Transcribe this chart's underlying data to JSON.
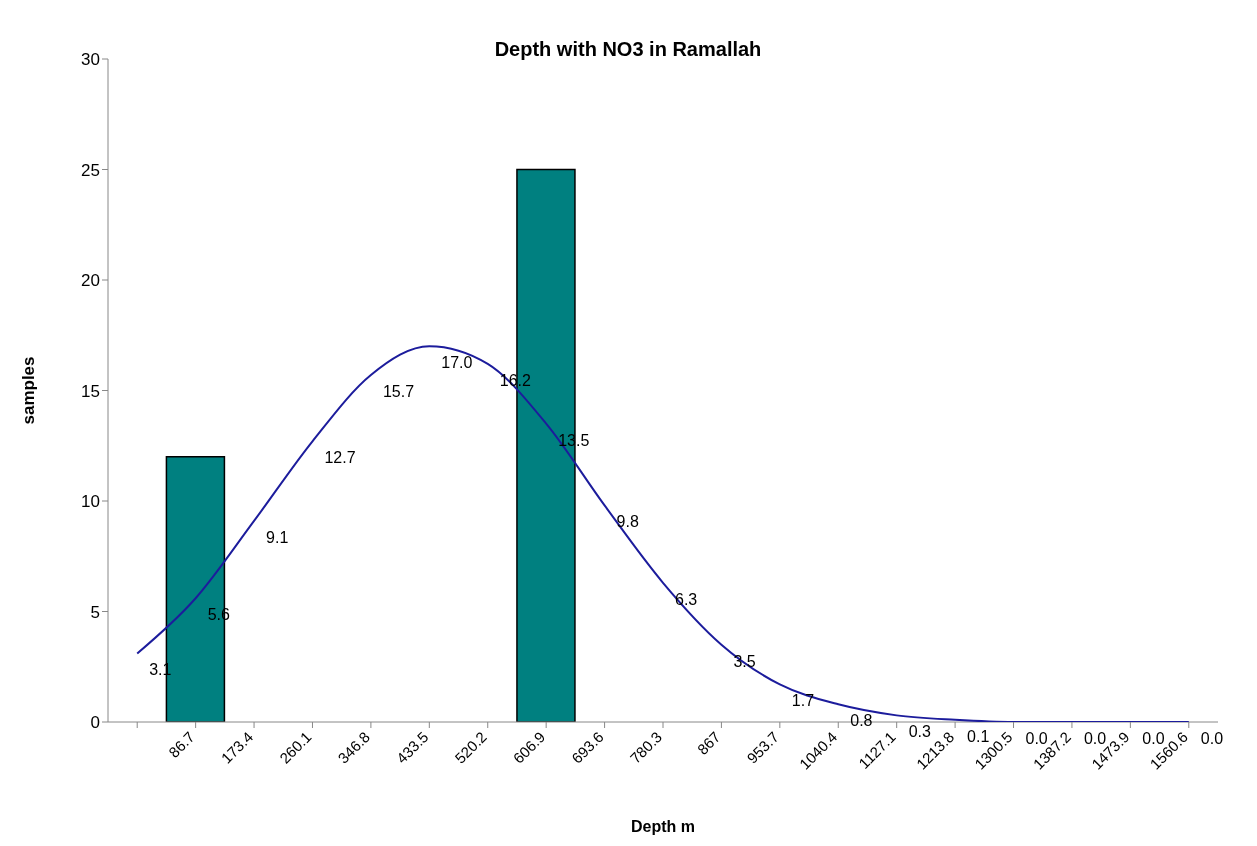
{
  "chart_data": {
    "type": "bar",
    "title": "Depth with NO3 in Ramallah",
    "xlabel": "Depth m",
    "ylabel": "samples",
    "categories": [
      null,
      "86.7",
      "173.4",
      "260.1",
      "346.8",
      "433.5",
      "520.2",
      "606.9",
      "693.6",
      "780.3",
      "867",
      "953.7",
      "1040.4",
      "1127.1",
      "1213.8",
      "1300.5",
      "1387.2",
      "1473.9",
      "1560.6"
    ],
    "series": [
      {
        "type": "bar",
        "color": "#008080",
        "values": [
          0,
          12,
          0,
          0,
          0,
          0,
          0,
          25,
          0,
          0,
          0,
          0,
          0,
          0,
          0,
          0,
          0,
          0,
          0
        ]
      },
      {
        "type": "line",
        "color": "#1c1c9c",
        "values": [
          3.1,
          5.6,
          9.1,
          12.7,
          15.7,
          17.0,
          16.2,
          13.5,
          9.8,
          6.3,
          3.5,
          1.7,
          0.8,
          0.3,
          0.1,
          0.0,
          0.0,
          0.0,
          0.0
        ],
        "value_labels": [
          "3.1",
          "5.6",
          "9.1",
          "12.7",
          "15.7",
          "17.0",
          "16.2",
          "13.5",
          "9.8",
          "6.3",
          "3.5",
          "1.7",
          "0.8",
          "0.3",
          "0.1",
          "0.0",
          "0.0",
          "0.0",
          "0.0"
        ]
      }
    ],
    "ylim": [
      0,
      30
    ],
    "yticks": [
      0,
      5,
      10,
      15,
      20,
      25,
      30
    ],
    "grid": false,
    "legend": false,
    "marker": "none"
  }
}
